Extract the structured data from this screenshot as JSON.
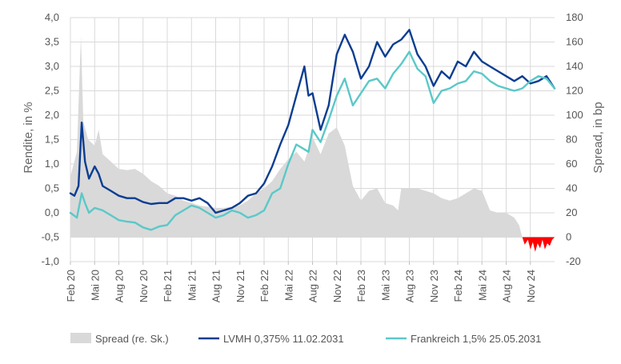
{
  "chart_data": {
    "type": "line",
    "title": "",
    "ylabel_left": "Rendite, in %",
    "ylabel_right": "Spread, in bp",
    "ylim_left": [
      -1.0,
      4.0
    ],
    "ylim_right": [
      -20,
      180
    ],
    "yticks_left": [
      "4,0",
      "3,5",
      "3,0",
      "2,5",
      "2,0",
      "1,5",
      "1,0",
      "0,5",
      "0,0",
      "-0,5",
      "-1,0"
    ],
    "yticks_right": [
      "180",
      "160",
      "140",
      "120",
      "100",
      "80",
      "60",
      "40",
      "20",
      "0",
      "-20"
    ],
    "x_start": "2020-02",
    "x_end": "2024-12",
    "xticks": [
      {
        "label": "Feb 20",
        "m": 0
      },
      {
        "label": "Mai 20",
        "m": 3
      },
      {
        "label": "Aug 20",
        "m": 6
      },
      {
        "label": "Nov 20",
        "m": 9
      },
      {
        "label": "Feb 21",
        "m": 12
      },
      {
        "label": "Mai 21",
        "m": 15
      },
      {
        "label": "Aug 21",
        "m": 18
      },
      {
        "label": "Nov 21",
        "m": 21
      },
      {
        "label": "Feb 22",
        "m": 24
      },
      {
        "label": "Mai 22",
        "m": 27
      },
      {
        "label": "Aug 22",
        "m": 30
      },
      {
        "label": "Nov 22",
        "m": 33
      },
      {
        "label": "Feb 23",
        "m": 36
      },
      {
        "label": "Mai 23",
        "m": 39
      },
      {
        "label": "Aug 23",
        "m": 42
      },
      {
        "label": "Nov 23",
        "m": 45
      },
      {
        "label": "Feb 24",
        "m": 48
      },
      {
        "label": "Mai 24",
        "m": 51
      },
      {
        "label": "Aug 24",
        "m": 54
      },
      {
        "label": "Nov 24",
        "m": 57
      }
    ],
    "series": [
      {
        "name": "Spread (re. Sk.)",
        "kind": "area",
        "axis": "right",
        "color": "#d9d9d9",
        "points": [
          [
            0,
            50
          ],
          [
            0.8,
            70
          ],
          [
            1.3,
            165
          ],
          [
            1.6,
            95
          ],
          [
            2.2,
            80
          ],
          [
            3,
            75
          ],
          [
            3.5,
            88
          ],
          [
            4,
            68
          ],
          [
            5,
            62
          ],
          [
            6,
            56
          ],
          [
            7,
            55
          ],
          [
            8,
            56
          ],
          [
            9,
            52
          ],
          [
            10,
            46
          ],
          [
            11,
            42
          ],
          [
            12,
            36
          ],
          [
            13,
            34
          ],
          [
            14,
            30
          ],
          [
            15,
            28
          ],
          [
            16,
            26
          ],
          [
            17,
            25
          ],
          [
            18,
            24
          ],
          [
            19,
            24
          ],
          [
            20,
            25
          ],
          [
            21,
            26
          ],
          [
            22,
            30
          ],
          [
            23,
            36
          ],
          [
            24,
            40
          ],
          [
            25,
            46
          ],
          [
            26,
            56
          ],
          [
            27,
            64
          ],
          [
            28,
            70
          ],
          [
            29,
            62
          ],
          [
            30,
            82
          ],
          [
            31,
            68
          ],
          [
            32,
            85
          ],
          [
            33,
            90
          ],
          [
            34,
            75
          ],
          [
            35,
            42
          ],
          [
            36,
            30
          ],
          [
            37,
            38
          ],
          [
            38,
            40
          ],
          [
            39,
            28
          ],
          [
            40,
            26
          ],
          [
            40.6,
            22
          ],
          [
            41,
            40
          ],
          [
            42,
            40
          ],
          [
            43,
            40
          ],
          [
            44,
            38
          ],
          [
            45,
            36
          ],
          [
            46,
            32
          ],
          [
            47,
            30
          ],
          [
            48,
            32
          ],
          [
            49,
            36
          ],
          [
            50,
            40
          ],
          [
            51,
            38
          ],
          [
            52,
            22
          ],
          [
            53,
            20
          ],
          [
            54,
            20
          ],
          [
            55,
            16
          ],
          [
            55.6,
            10
          ],
          [
            56,
            0
          ]
        ]
      },
      {
        "name": "Spread negative (rot)",
        "kind": "area",
        "axis": "right",
        "color": "#ff0000",
        "points": [
          [
            56,
            0
          ],
          [
            56.3,
            -6
          ],
          [
            56.7,
            -2
          ],
          [
            57,
            -10
          ],
          [
            57.3,
            -4
          ],
          [
            57.6,
            -12
          ],
          [
            57.9,
            -5
          ],
          [
            58.2,
            -9
          ],
          [
            58.5,
            -2
          ],
          [
            58.8,
            -10
          ],
          [
            59.1,
            -5
          ],
          [
            59.4,
            -7
          ],
          [
            59.7,
            -2
          ],
          [
            60,
            0
          ]
        ]
      },
      {
        "name": "LVMH 0,375% 11.02.2031",
        "kind": "line",
        "axis": "left",
        "color": "#0b3d91",
        "points": [
          [
            0,
            0.4
          ],
          [
            0.5,
            0.35
          ],
          [
            1,
            0.55
          ],
          [
            1.4,
            1.85
          ],
          [
            1.8,
            1.05
          ],
          [
            2.3,
            0.7
          ],
          [
            3,
            0.95
          ],
          [
            3.5,
            0.8
          ],
          [
            4,
            0.55
          ],
          [
            5,
            0.45
          ],
          [
            6,
            0.35
          ],
          [
            7,
            0.3
          ],
          [
            8,
            0.3
          ],
          [
            9,
            0.22
          ],
          [
            10,
            0.18
          ],
          [
            11,
            0.2
          ],
          [
            12,
            0.2
          ],
          [
            13,
            0.3
          ],
          [
            14,
            0.3
          ],
          [
            15,
            0.25
          ],
          [
            16,
            0.3
          ],
          [
            17,
            0.2
          ],
          [
            18,
            0.0
          ],
          [
            19,
            0.05
          ],
          [
            20,
            0.1
          ],
          [
            21,
            0.2
          ],
          [
            22,
            0.35
          ],
          [
            23,
            0.4
          ],
          [
            24,
            0.6
          ],
          [
            25,
            0.95
          ],
          [
            26,
            1.4
          ],
          [
            27,
            1.8
          ],
          [
            28,
            2.4
          ],
          [
            29,
            3.0
          ],
          [
            29.5,
            2.4
          ],
          [
            30,
            2.45
          ],
          [
            31,
            1.7
          ],
          [
            32,
            2.2
          ],
          [
            33,
            3.25
          ],
          [
            34,
            3.65
          ],
          [
            35,
            3.3
          ],
          [
            36,
            2.75
          ],
          [
            37,
            3.0
          ],
          [
            38,
            3.5
          ],
          [
            39,
            3.2
          ],
          [
            40,
            3.45
          ],
          [
            41,
            3.55
          ],
          [
            42,
            3.75
          ],
          [
            43,
            3.25
          ],
          [
            44,
            3.0
          ],
          [
            45,
            2.6
          ],
          [
            46,
            2.9
          ],
          [
            47,
            2.75
          ],
          [
            48,
            3.1
          ],
          [
            49,
            3.0
          ],
          [
            50,
            3.3
          ],
          [
            51,
            3.1
          ],
          [
            52,
            3.0
          ],
          [
            53,
            2.9
          ],
          [
            54,
            2.8
          ],
          [
            55,
            2.7
          ],
          [
            56,
            2.8
          ],
          [
            57,
            2.65
          ],
          [
            58,
            2.7
          ],
          [
            59,
            2.8
          ],
          [
            60,
            2.55
          ]
        ]
      },
      {
        "name": "Frankreich 1,5% 25.05.2031",
        "kind": "line",
        "axis": "left",
        "color": "#5bc8c8",
        "points": [
          [
            0,
            0.0
          ],
          [
            0.8,
            -0.1
          ],
          [
            1.4,
            0.4
          ],
          [
            1.8,
            0.2
          ],
          [
            2.3,
            0.0
          ],
          [
            3,
            0.1
          ],
          [
            4,
            0.05
          ],
          [
            5,
            -0.05
          ],
          [
            6,
            -0.15
          ],
          [
            7,
            -0.18
          ],
          [
            8,
            -0.2
          ],
          [
            9,
            -0.3
          ],
          [
            10,
            -0.35
          ],
          [
            11,
            -0.28
          ],
          [
            12,
            -0.25
          ],
          [
            13,
            -0.05
          ],
          [
            14,
            0.05
          ],
          [
            15,
            0.15
          ],
          [
            16,
            0.1
          ],
          [
            17,
            0.0
          ],
          [
            18,
            -0.1
          ],
          [
            19,
            -0.05
          ],
          [
            20,
            0.05
          ],
          [
            21,
            0.0
          ],
          [
            22,
            -0.1
          ],
          [
            23,
            -0.05
          ],
          [
            24,
            0.05
          ],
          [
            25,
            0.4
          ],
          [
            26,
            0.5
          ],
          [
            27,
            1.0
          ],
          [
            28,
            1.4
          ],
          [
            29,
            1.3
          ],
          [
            29.5,
            1.25
          ],
          [
            30,
            1.7
          ],
          [
            31,
            1.45
          ],
          [
            32,
            1.9
          ],
          [
            33,
            2.4
          ],
          [
            34,
            2.75
          ],
          [
            35,
            2.2
          ],
          [
            36,
            2.45
          ],
          [
            37,
            2.7
          ],
          [
            38,
            2.75
          ],
          [
            39,
            2.55
          ],
          [
            40,
            2.85
          ],
          [
            41,
            3.05
          ],
          [
            42,
            3.3
          ],
          [
            43,
            2.95
          ],
          [
            44,
            2.8
          ],
          [
            45,
            2.25
          ],
          [
            46,
            2.5
          ],
          [
            47,
            2.55
          ],
          [
            48,
            2.65
          ],
          [
            49,
            2.7
          ],
          [
            50,
            2.9
          ],
          [
            51,
            2.85
          ],
          [
            52,
            2.7
          ],
          [
            53,
            2.6
          ],
          [
            54,
            2.55
          ],
          [
            55,
            2.5
          ],
          [
            56,
            2.55
          ],
          [
            57,
            2.7
          ],
          [
            58,
            2.8
          ],
          [
            59,
            2.75
          ],
          [
            60,
            2.55
          ]
        ]
      }
    ],
    "legend": [
      {
        "label": "Spread (re. Sk.)",
        "color": "#d9d9d9",
        "kind": "area"
      },
      {
        "label": "LVMH 0,375% 11.02.2031",
        "color": "#0b3d91",
        "kind": "line"
      },
      {
        "label": "Frankreich 1,5% 25.05.2031",
        "color": "#5bc8c8",
        "kind": "line"
      }
    ]
  }
}
